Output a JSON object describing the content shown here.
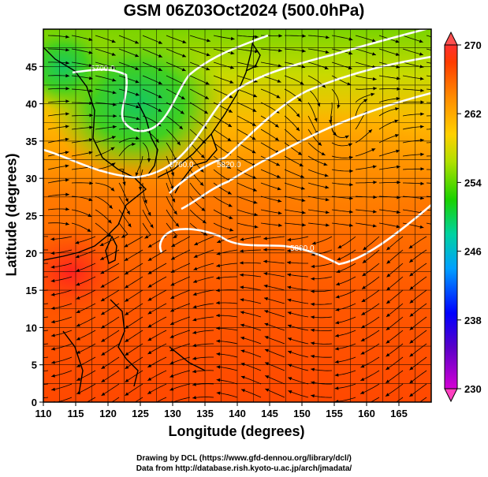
{
  "chart_data": {
    "type": "heatmap",
    "title": "GSM 06Z03Oct2024 (500.0hPa)",
    "xlabel": "Longitude (degrees)",
    "ylabel": "Latitude  (degrees)",
    "xlim": [
      110,
      170
    ],
    "ylim": [
      0,
      50
    ],
    "x_ticks": [
      "110",
      "115",
      "120",
      "125",
      "130",
      "135",
      "140",
      "145",
      "150",
      "155",
      "160",
      "165"
    ],
    "y_ticks": [
      "0",
      "5",
      "10",
      "15",
      "20",
      "25",
      "30",
      "35",
      "40",
      "45"
    ],
    "grid": true,
    "overlay": "streamlines",
    "colorbar": {
      "min": 230,
      "max": 270,
      "ticks": [
        "230",
        "238",
        "246",
        "254",
        "262",
        "270"
      ],
      "colors": [
        "#d400d4",
        "#3a00c8",
        "#0000ff",
        "#00bfff",
        "#00d27a",
        "#3fcf00",
        "#b8e000",
        "#ffd000",
        "#ff8a00",
        "#ff3c00",
        "#ff2a2a"
      ]
    },
    "contours": [
      {
        "label": "5700.0"
      },
      {
        "label": "5760.0"
      },
      {
        "label": "5820.0"
      },
      {
        "label": "5880.0"
      }
    ],
    "temperature_field": [
      {
        "lon": 112,
        "lat": 47,
        "value": 255
      },
      {
        "lon": 118,
        "lat": 44,
        "value": 257
      },
      {
        "lon": 125,
        "lat": 38,
        "value": 254
      },
      {
        "lon": 124,
        "lat": 42,
        "value": 251
      },
      {
        "lon": 133,
        "lat": 44,
        "value": 258
      },
      {
        "lon": 140,
        "lat": 48,
        "value": 257
      },
      {
        "lon": 150,
        "lat": 47,
        "value": 260
      },
      {
        "lon": 165,
        "lat": 46,
        "value": 262
      },
      {
        "lon": 155,
        "lat": 37,
        "value": 265
      },
      {
        "lon": 140,
        "lat": 32,
        "value": 263
      },
      {
        "lon": 115,
        "lat": 33,
        "value": 262
      },
      {
        "lon": 113,
        "lat": 20,
        "value": 269
      },
      {
        "lon": 121,
        "lat": 22,
        "value": 268
      },
      {
        "lon": 140,
        "lat": 20,
        "value": 266
      },
      {
        "lon": 160,
        "lat": 20,
        "value": 266
      },
      {
        "lon": 130,
        "lat": 10,
        "value": 267
      },
      {
        "lon": 160,
        "lat": 5,
        "value": 267
      },
      {
        "lon": 115,
        "lat": 3,
        "value": 268
      }
    ]
  },
  "credits": {
    "line1": "Drawing by DCL (https://www.gfd-dennou.org/library/dcl/)",
    "line2": "Data from http://database.rish.kyoto-u.ac.jp/arch/jmadata/"
  },
  "colors": {
    "land_outline": "#000000",
    "contour": "#ffffff"
  }
}
